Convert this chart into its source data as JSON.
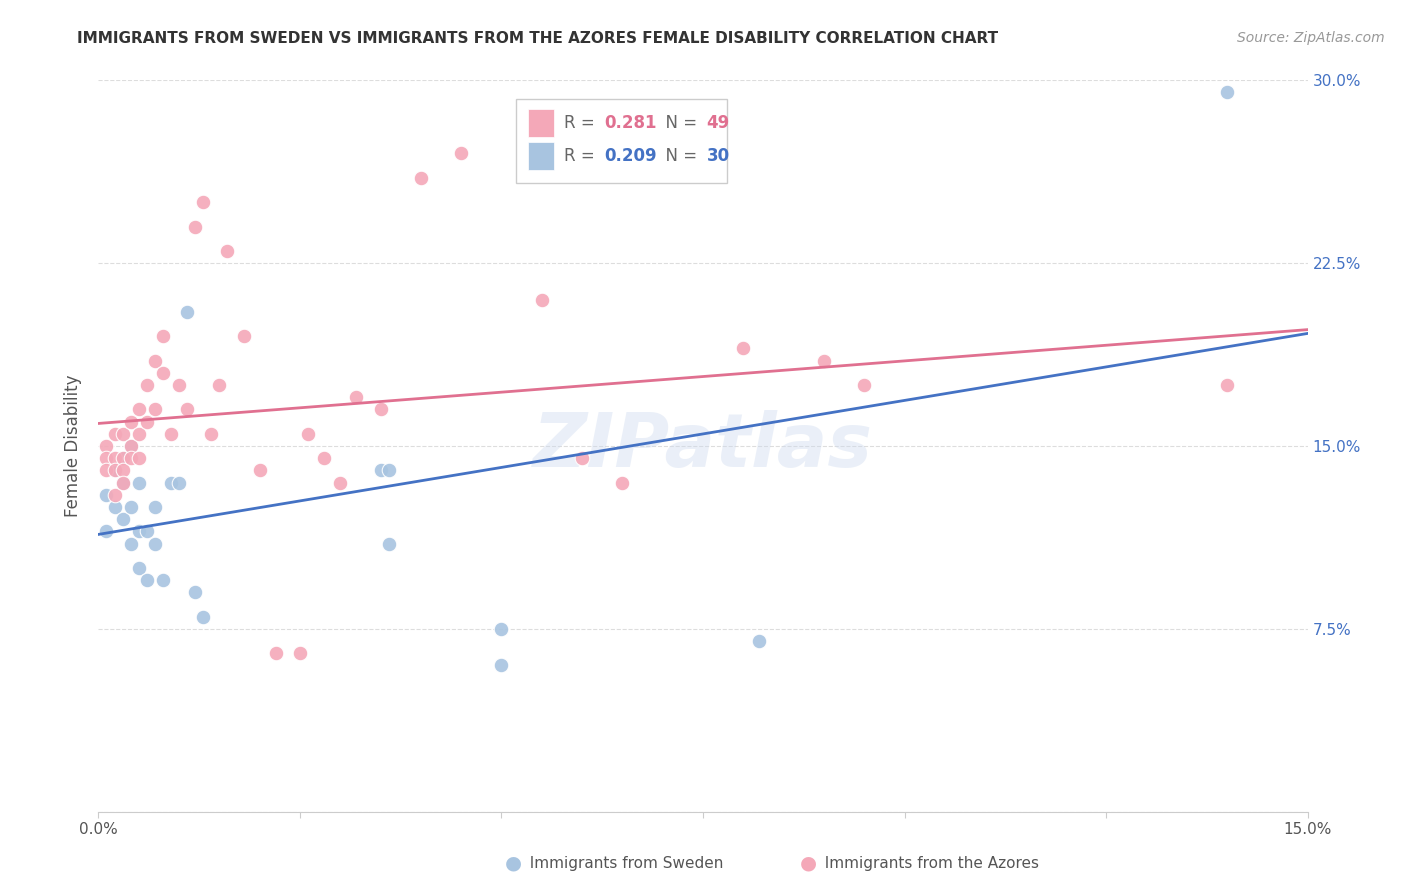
{
  "title": "IMMIGRANTS FROM SWEDEN VS IMMIGRANTS FROM THE AZORES FEMALE DISABILITY CORRELATION CHART",
  "source": "Source: ZipAtlas.com",
  "ylabel": "Female Disability",
  "x_min": 0.0,
  "x_max": 0.15,
  "y_min": 0.0,
  "y_max": 0.3,
  "x_ticks": [
    0.0,
    0.025,
    0.05,
    0.075,
    0.1,
    0.125,
    0.15
  ],
  "x_tick_labels": [
    "0.0%",
    "",
    "",
    "",
    "",
    "",
    "15.0%"
  ],
  "y_ticks": [
    0.0,
    0.075,
    0.15,
    0.225,
    0.3
  ],
  "y_tick_labels_right": [
    "",
    "7.5%",
    "15.0%",
    "22.5%",
    "30.0%"
  ],
  "sweden_color": "#a8c4e0",
  "azores_color": "#f4a8b8",
  "sweden_line_color": "#4472c4",
  "azores_line_color": "#e07090",
  "legend_r_sweden": "0.209",
  "legend_n_sweden": "30",
  "legend_r_azores": "0.281",
  "legend_n_azores": "49",
  "sweden_x": [
    0.001,
    0.001,
    0.002,
    0.002,
    0.003,
    0.003,
    0.003,
    0.004,
    0.004,
    0.004,
    0.005,
    0.005,
    0.005,
    0.006,
    0.006,
    0.007,
    0.007,
    0.008,
    0.009,
    0.01,
    0.011,
    0.012,
    0.013,
    0.035,
    0.036,
    0.036,
    0.05,
    0.05,
    0.082,
    0.14
  ],
  "sweden_y": [
    0.13,
    0.115,
    0.14,
    0.125,
    0.145,
    0.135,
    0.12,
    0.15,
    0.125,
    0.11,
    0.135,
    0.115,
    0.1,
    0.115,
    0.095,
    0.125,
    0.11,
    0.095,
    0.135,
    0.135,
    0.205,
    0.09,
    0.08,
    0.14,
    0.14,
    0.11,
    0.075,
    0.06,
    0.07,
    0.295
  ],
  "azores_x": [
    0.001,
    0.001,
    0.001,
    0.002,
    0.002,
    0.002,
    0.002,
    0.003,
    0.003,
    0.003,
    0.003,
    0.004,
    0.004,
    0.004,
    0.005,
    0.005,
    0.005,
    0.006,
    0.006,
    0.007,
    0.007,
    0.008,
    0.008,
    0.009,
    0.01,
    0.011,
    0.012,
    0.013,
    0.014,
    0.015,
    0.016,
    0.018,
    0.02,
    0.022,
    0.025,
    0.026,
    0.028,
    0.03,
    0.032,
    0.035,
    0.04,
    0.045,
    0.055,
    0.06,
    0.065,
    0.08,
    0.09,
    0.095,
    0.14
  ],
  "azores_y": [
    0.15,
    0.145,
    0.14,
    0.155,
    0.145,
    0.14,
    0.13,
    0.155,
    0.145,
    0.14,
    0.135,
    0.16,
    0.15,
    0.145,
    0.165,
    0.155,
    0.145,
    0.175,
    0.16,
    0.185,
    0.165,
    0.195,
    0.18,
    0.155,
    0.175,
    0.165,
    0.24,
    0.25,
    0.155,
    0.175,
    0.23,
    0.195,
    0.14,
    0.065,
    0.065,
    0.155,
    0.145,
    0.135,
    0.17,
    0.165,
    0.26,
    0.27,
    0.21,
    0.145,
    0.135,
    0.19,
    0.185,
    0.175,
    0.175
  ],
  "watermark": "ZIPatlas",
  "background_color": "#ffffff",
  "grid_color": "#dddddd"
}
